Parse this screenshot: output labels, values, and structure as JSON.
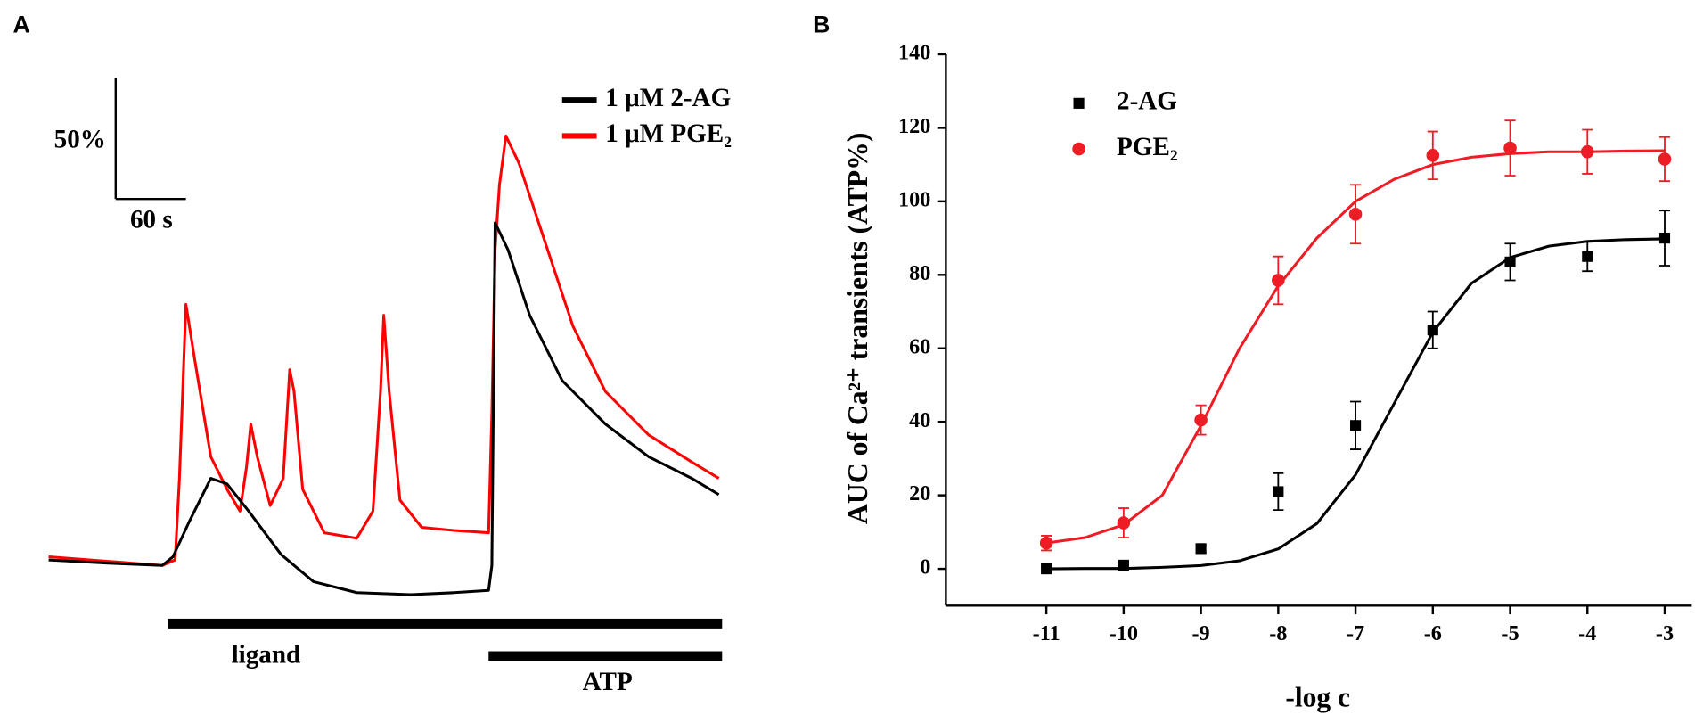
{
  "chart_data": [
    {
      "panel": "A",
      "type": "line",
      "scale_y": "50%",
      "scale_x": "60 s",
      "annotations": [
        "ligand",
        "ATP"
      ],
      "series": [
        {
          "name": "1 μM 2-AG",
          "color": "#000000",
          "t": [
            0,
            53.2,
            101.6,
            111.3,
            125.8,
            145.2,
            159.7,
            179.1,
            208.1,
            237.2,
            275.9,
            324.3,
            363.0,
            394.0,
            396.9,
            399.8,
            411.4,
            430.8,
            459.8,
            498.5,
            537.2,
            576.0,
            600.2
          ],
          "values": [
            1.2,
            -0.6,
            -1.8,
            2.9,
            21.8,
            45.3,
            42.3,
            27.6,
            4.1,
            -10.6,
            -16.5,
            -17.6,
            -16.5,
            -15.3,
            -1.8,
            183.5,
            168.8,
            133.5,
            98.2,
            74.7,
            57.0,
            45.3,
            36.5
          ]
        },
        {
          "name": "1 μM PGE₂",
          "color": "#ff0000",
          "t": [
            0,
            101.6,
            113.3,
            117.1,
            122.9,
            130.7,
            145.2,
            159.7,
            171.3,
            177.1,
            181.0,
            186.8,
            198.4,
            210.1,
            215.9,
            219.7,
            227.5,
            246.8,
            275.9,
            290.4,
            297.2,
            300.1,
            304.9,
            314.6,
            334.0,
            363.0,
            394.0,
            396.9,
            399.8,
            403.7,
            409.5,
            421.1,
            440.4,
            469.5,
            498.5,
            537.2,
            576.0,
            600.2
          ],
          "values": [
            2.9,
            -1.8,
            1.2,
            45.3,
            139.4,
            110.0,
            57.0,
            39.4,
            27.6,
            51.2,
            74.7,
            57.0,
            30.6,
            45.3,
            104.1,
            92.3,
            39.4,
            15.9,
            12.9,
            27.6,
            92.3,
            133.5,
            92.3,
            33.5,
            18.8,
            17.1,
            15.9,
            80.6,
            168.8,
            204.0,
            230.5,
            215.8,
            180.5,
            127.6,
            92.3,
            68.8,
            54.1,
            45.3
          ]
        }
      ]
    },
    {
      "panel": "B",
      "type": "scatter",
      "x_label": "-log c",
      "y_label": "AUC of Ca²⁺ transients (ATP%)",
      "x": [
        -11,
        -10,
        -9,
        -8,
        -7,
        -6,
        -5,
        -4,
        -3
      ],
      "xlim": [
        -12.3,
        -2.65
      ],
      "xticks": [
        -11,
        -10,
        -9,
        -8,
        -7,
        -6,
        -5,
        -4,
        -3
      ],
      "ylim": [
        -10,
        140
      ],
      "yticks": [
        0,
        20,
        40,
        60,
        80,
        100,
        120,
        140
      ],
      "series": [
        {
          "name": "2-AG",
          "color": "#000000",
          "marker": "square",
          "values": [
            0,
            1,
            5.5,
            21,
            39,
            65,
            83.5,
            85,
            90
          ],
          "errors": [
            0.5,
            0.8,
            1,
            5,
            6.5,
            5,
            5,
            4,
            7.5
          ],
          "fit": {
            "x": [
              -11,
              -10.5,
              -10,
              -9.5,
              -9,
              -8.5,
              -8,
              -7.5,
              -7,
              -6.5,
              -6,
              -5.5,
              -5,
              -4.5,
              -4,
              -3.5,
              -3
            ],
            "values": [
              0,
              0.1,
              0.1,
              0.4,
              0.9,
              2.2,
              5.4,
              12.3,
              25.6,
              45,
              64.4,
              77.7,
              84.7,
              87.8,
              89.1,
              89.6,
              89.8
            ]
          }
        },
        {
          "name": "PGE₂",
          "color": "#ee1c25",
          "marker": "circle",
          "values": [
            7,
            12.5,
            40.5,
            78.5,
            96.5,
            112.5,
            114.5,
            113.5,
            111.5
          ],
          "errors": [
            2,
            4,
            4,
            6.5,
            8,
            6.5,
            7.5,
            6,
            6
          ],
          "fit": {
            "x": [
              -11,
              -10.5,
              -10,
              -9.5,
              -9,
              -8.5,
              -8,
              -7.5,
              -7,
              -6.5,
              -6,
              -5.5,
              -5,
              -4.5,
              -4,
              -3.5,
              -3
            ],
            "values": [
              7,
              8.5,
              12,
              20,
              39,
              60,
              77,
              90,
              100,
              106,
              110,
              112,
              113,
              113.5,
              113.5,
              113.7,
              113.8
            ]
          }
        }
      ]
    }
  ]
}
